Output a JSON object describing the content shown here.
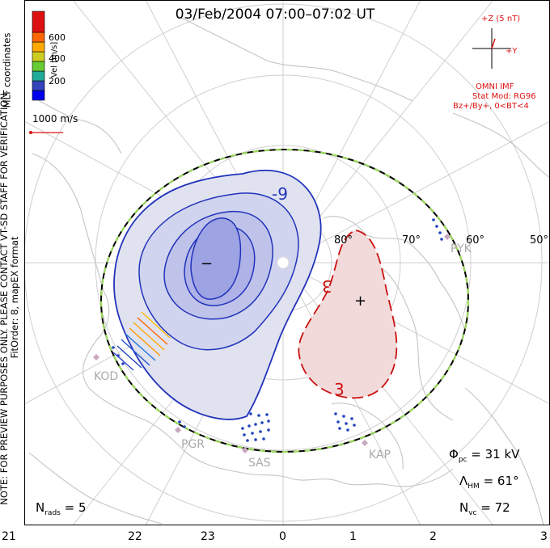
{
  "title": "03/Feb/2004 07:00–07:02 UT",
  "vel_scale": {
    "label": "Vel [m/s]",
    "ticks": [
      "600",
      "400",
      "200"
    ],
    "colors": [
      "#3333cc",
      "#2277dd",
      "#22aa99",
      "#66cc33",
      "#cccc22",
      "#ffaa00",
      "#ff6600",
      "#dd1111"
    ]
  },
  "vector_scale": "1000 m/s",
  "mlt_coordinates": "MLT coordinates",
  "note_lines": [
    "NOTE: FOR PREVIEW PURPOSES ONLY. PLEASE CONTACT VT-SD STAFF FOR VERIFICATION.",
    "FitOrder: 8, mapEX format"
  ],
  "imf": {
    "plus_z": "+Z (5 nT)",
    "plus_y": "+Y",
    "source": "OMNI IMF",
    "model": "Stat Mod: RG96",
    "conditions": "Bz+/By+, 0<BT<4"
  },
  "contours": {
    "negative_label": "-9",
    "positive_label_1": "3",
    "positive_label_2": "3",
    "min_marker": "−",
    "max_marker": "+"
  },
  "latitude_labels": [
    "80°",
    "70°",
    "60°",
    "50°"
  ],
  "radars": [
    "KOD",
    "PGR",
    "SAS",
    "KAP",
    "PYK"
  ],
  "mlt_labels": [
    "21",
    "22",
    "23",
    "0",
    "1",
    "2",
    "3"
  ],
  "stats": {
    "phi_pc": "31 kV",
    "lambda_hm": "61°",
    "n_vc": "72",
    "n_rads": "5"
  }
}
